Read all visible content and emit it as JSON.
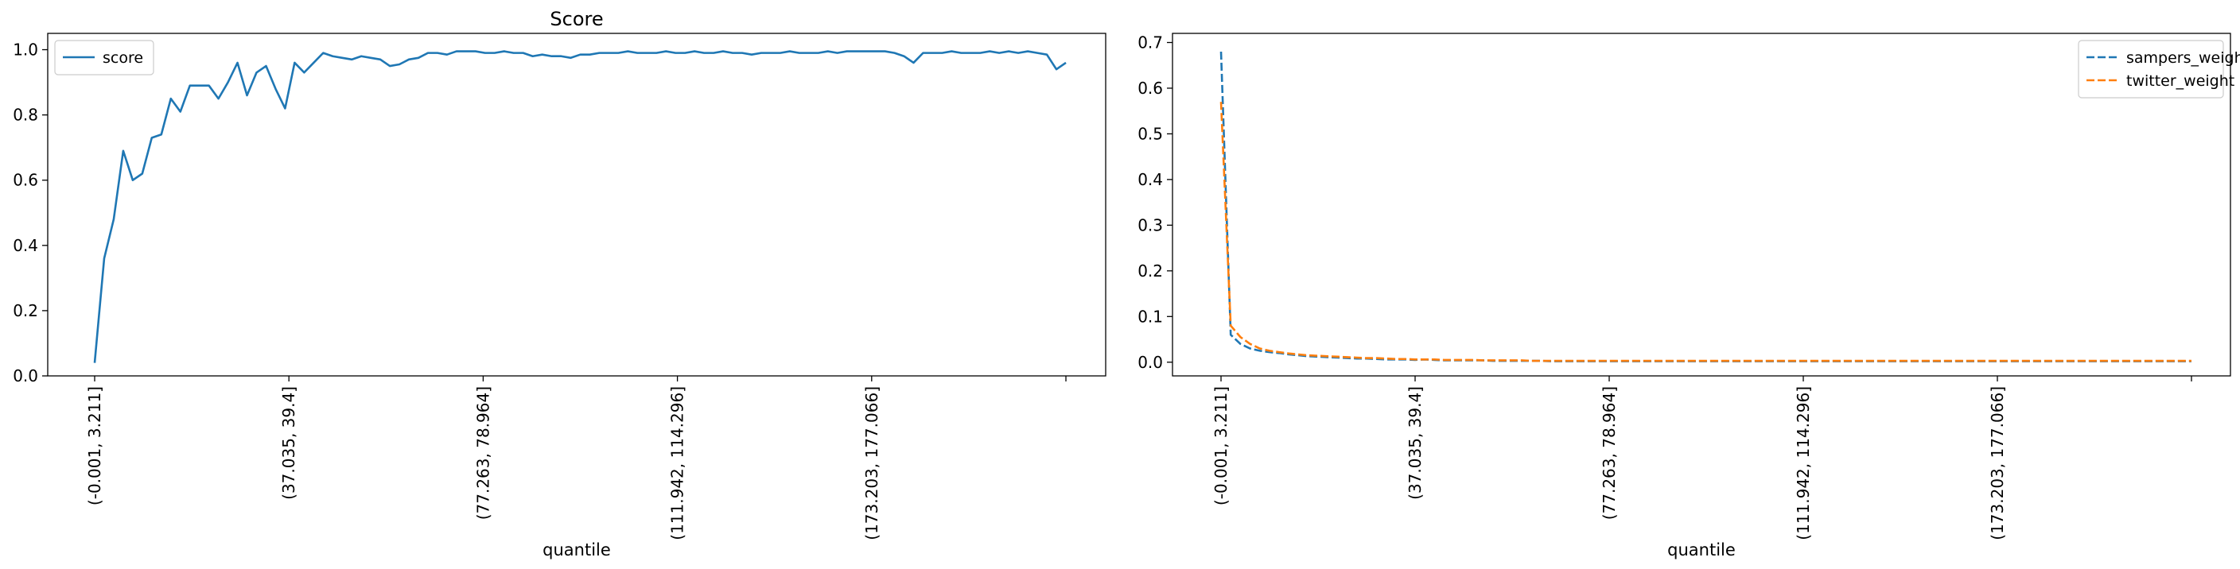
{
  "chart_data": [
    {
      "type": "line",
      "title": "Score",
      "xlabel": "quantile",
      "ylabel": "",
      "ylim": [
        0.0,
        1.05
      ],
      "x_tick_labels": [
        "(-0.001, 3.211]",
        "(37.035, 39.4]",
        "(77.263, 78.964]",
        "(111.942, 114.296]",
        "(173.203, 177.066]",
        ""
      ],
      "y_tick_labels": [
        "0.0",
        "0.2",
        "0.4",
        "0.6",
        "0.8",
        "1.0"
      ],
      "grid": false,
      "legend": "top-left",
      "series": [
        {
          "name": "score",
          "color": "#1f77b4",
          "dash": "solid",
          "values": [
            0.04,
            0.36,
            0.48,
            0.69,
            0.6,
            0.62,
            0.73,
            0.74,
            0.85,
            0.81,
            0.89,
            0.89,
            0.89,
            0.85,
            0.9,
            0.96,
            0.86,
            0.93,
            0.95,
            0.88,
            0.82,
            0.96,
            0.93,
            0.96,
            0.99,
            0.98,
            0.975,
            0.97,
            0.98,
            0.975,
            0.97,
            0.95,
            0.955,
            0.97,
            0.975,
            0.99,
            0.99,
            0.985,
            0.995,
            0.995,
            0.995,
            0.99,
            0.99,
            0.995,
            0.99,
            0.99,
            0.98,
            0.985,
            0.98,
            0.98,
            0.975,
            0.985,
            0.985,
            0.99,
            0.99,
            0.99,
            0.995,
            0.99,
            0.99,
            0.99,
            0.995,
            0.99,
            0.99,
            0.995,
            0.99,
            0.99,
            0.995,
            0.99,
            0.99,
            0.985,
            0.99,
            0.99,
            0.99,
            0.995,
            0.99,
            0.99,
            0.99,
            0.995,
            0.99,
            0.995,
            0.995,
            0.995,
            0.995,
            0.995,
            0.99,
            0.98,
            0.96,
            0.99,
            0.99,
            0.99,
            0.995,
            0.99,
            0.99,
            0.99,
            0.995,
            0.99,
            0.995,
            0.99,
            0.995,
            0.99,
            0.985,
            0.94,
            0.96
          ]
        }
      ]
    },
    {
      "type": "line",
      "title": "",
      "xlabel": "quantile",
      "ylabel": "",
      "ylim": [
        -0.03,
        0.72
      ],
      "x_tick_labels": [
        "(-0.001, 3.211]",
        "(37.035, 39.4]",
        "(77.263, 78.964]",
        "(111.942, 114.296]",
        "(173.203, 177.066]",
        ""
      ],
      "y_tick_labels": [
        "0.0",
        "0.1",
        "0.2",
        "0.3",
        "0.4",
        "0.5",
        "0.6",
        "0.7"
      ],
      "grid": false,
      "legend": "top-right",
      "series": [
        {
          "name": "sampers_weight",
          "color": "#1f77b4",
          "dash": "dashed",
          "values": [
            0.68,
            0.06,
            0.04,
            0.03,
            0.025,
            0.022,
            0.02,
            0.017,
            0.015,
            0.013,
            0.012,
            0.011,
            0.01,
            0.009,
            0.008,
            0.008,
            0.007,
            0.006,
            0.006,
            0.006,
            0.005,
            0.006,
            0.005,
            0.004,
            0.004,
            0.004,
            0.004,
            0.004,
            0.003,
            0.003,
            0.003,
            0.003,
            0.003,
            0.003,
            0.002,
            0.002,
            0.002,
            0.002,
            0.002,
            0.002,
            0.002,
            0.002,
            0.002,
            0.002,
            0.002,
            0.002,
            0.002,
            0.002,
            0.002,
            0.002,
            0.002,
            0.002,
            0.002,
            0.002,
            0.002,
            0.002,
            0.002,
            0.002,
            0.002,
            0.002,
            0.002,
            0.002,
            0.002,
            0.002,
            0.002,
            0.002,
            0.002,
            0.002,
            0.002,
            0.002,
            0.002,
            0.002,
            0.002,
            0.002,
            0.002,
            0.002,
            0.002,
            0.002,
            0.002,
            0.002,
            0.002,
            0.002,
            0.002,
            0.002,
            0.002,
            0.002,
            0.002,
            0.002,
            0.002,
            0.002,
            0.002,
            0.002,
            0.002,
            0.002,
            0.002,
            0.002,
            0.002,
            0.002,
            0.002,
            0.002,
            0.002
          ]
        },
        {
          "name": "twitter_weight",
          "color": "#ff7f0e",
          "dash": "dashed",
          "values": [
            0.57,
            0.08,
            0.055,
            0.04,
            0.03,
            0.025,
            0.022,
            0.019,
            0.017,
            0.015,
            0.014,
            0.013,
            0.012,
            0.011,
            0.01,
            0.009,
            0.009,
            0.008,
            0.007,
            0.007,
            0.006,
            0.006,
            0.006,
            0.005,
            0.005,
            0.005,
            0.005,
            0.004,
            0.004,
            0.004,
            0.004,
            0.004,
            0.003,
            0.003,
            0.003,
            0.003,
            0.003,
            0.003,
            0.003,
            0.003,
            0.003,
            0.003,
            0.003,
            0.003,
            0.003,
            0.003,
            0.003,
            0.003,
            0.003,
            0.003,
            0.003,
            0.003,
            0.003,
            0.003,
            0.003,
            0.003,
            0.003,
            0.003,
            0.003,
            0.003,
            0.003,
            0.003,
            0.003,
            0.003,
            0.003,
            0.003,
            0.003,
            0.003,
            0.003,
            0.003,
            0.003,
            0.003,
            0.003,
            0.003,
            0.003,
            0.003,
            0.003,
            0.003,
            0.003,
            0.003,
            0.003,
            0.003,
            0.003,
            0.003,
            0.003,
            0.003,
            0.003,
            0.003,
            0.003,
            0.003,
            0.003,
            0.003,
            0.003,
            0.003,
            0.003,
            0.003,
            0.003,
            0.003,
            0.003,
            0.003,
            0.003
          ]
        }
      ]
    }
  ]
}
